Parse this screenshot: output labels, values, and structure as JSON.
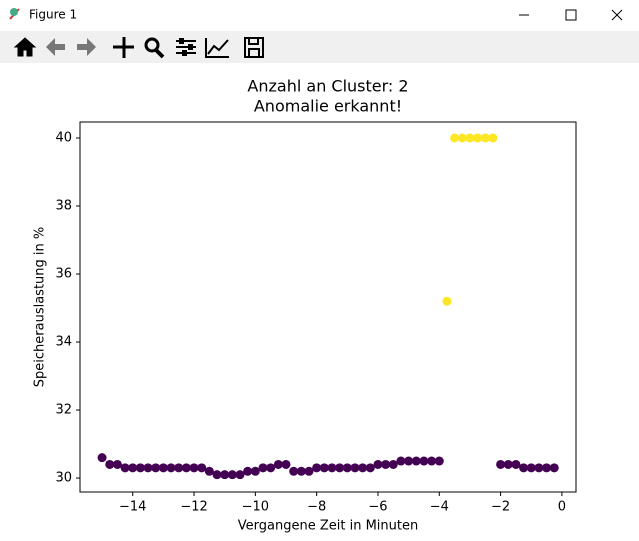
{
  "window": {
    "title": "Figure 1"
  },
  "chart_data": {
    "type": "scatter",
    "title": "Anzahl an Cluster: 2",
    "subtitle": "Anomalie erkannt!",
    "x_label": "Vergangene Zeit in Minuten",
    "y_label": "Speicherauslastung in %",
    "x": [
      -15,
      -14.75,
      -14.5,
      -14.25,
      -14,
      -13.75,
      -13.5,
      -13.25,
      -13,
      -12.75,
      -12.5,
      -12.25,
      -12,
      -11.75,
      -11.5,
      -11.25,
      -11,
      -10.75,
      -10.5,
      -10.25,
      -10,
      -9.75,
      -9.5,
      -9.25,
      -9,
      -8.75,
      -8.5,
      -8.25,
      -8,
      -7.75,
      -7.5,
      -7.25,
      -7,
      -6.75,
      -6.5,
      -6.25,
      -6,
      -5.75,
      -5.5,
      -5.25,
      -5,
      -4.75,
      -4.5,
      -4.25,
      -4,
      -3.75,
      -3.5,
      -3.25,
      -3,
      -2.75,
      -2.5,
      -2.25,
      -2,
      -1.75,
      -1.5,
      -1.25,
      -1,
      -0.75,
      -0.5,
      -0.25
    ],
    "values": [
      30.6,
      30.4,
      30.4,
      30.3,
      30.3,
      30.3,
      30.3,
      30.3,
      30.3,
      30.3,
      30.3,
      30.3,
      30.3,
      30.3,
      30.2,
      30.1,
      30.1,
      30.1,
      30.1,
      30.2,
      30.2,
      30.3,
      30.3,
      30.4,
      30.4,
      30.2,
      30.2,
      30.2,
      30.3,
      30.3,
      30.3,
      30.3,
      30.3,
      30.3,
      30.3,
      30.3,
      30.4,
      30.4,
      30.4,
      30.5,
      30.5,
      30.5,
      30.5,
      30.5,
      30.5,
      35.2,
      40,
      40,
      40,
      40,
      40,
      40,
      30.4,
      30.4,
      30.4,
      30.3,
      30.3,
      30.3,
      30.3,
      30.3
    ],
    "clusters": [
      0,
      0,
      0,
      0,
      0,
      0,
      0,
      0,
      0,
      0,
      0,
      0,
      0,
      0,
      0,
      0,
      0,
      0,
      0,
      0,
      0,
      0,
      0,
      0,
      0,
      0,
      0,
      0,
      0,
      0,
      0,
      0,
      0,
      0,
      0,
      0,
      0,
      0,
      0,
      0,
      0,
      0,
      0,
      0,
      0,
      1,
      1,
      1,
      1,
      1,
      1,
      1,
      0,
      0,
      0,
      0,
      0,
      0,
      0,
      0
    ],
    "cluster_colors": [
      "#440154",
      "#fde725"
    ],
    "xlim": [
      -15.72,
      0.46
    ],
    "ylim": [
      29.59,
      40.47
    ],
    "xticks": [
      {
        "value": -14,
        "label": "−14"
      },
      {
        "value": -12,
        "label": "−12"
      },
      {
        "value": -10,
        "label": "−10"
      },
      {
        "value": -8,
        "label": "−8"
      },
      {
        "value": -6,
        "label": "−6"
      },
      {
        "value": -4,
        "label": "−4"
      },
      {
        "value": -2,
        "label": "−2"
      },
      0
    ],
    "yticks": [
      30,
      32,
      34,
      36,
      38,
      40
    ],
    "grid": false
  }
}
